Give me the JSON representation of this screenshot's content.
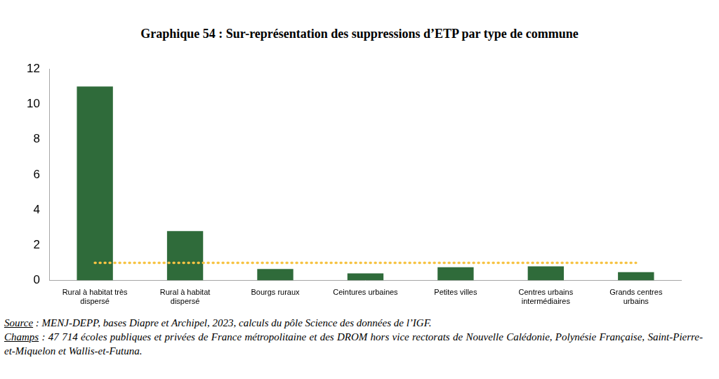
{
  "chart_data": {
    "type": "bar",
    "title": "Graphique 54 : Sur-représentation des suppressions d’ETP par type de commune",
    "categories": [
      [
        "Rural à habitat très",
        "dispersé"
      ],
      [
        "Rural à habitat",
        "dispersé"
      ],
      "Bourgs ruraux",
      "Ceintures urbaines",
      "Petites villes",
      [
        "Centres urbains",
        "intermédiaires"
      ],
      [
        "Grands centres",
        "urbains"
      ]
    ],
    "series": [
      {
        "type": "bar",
        "color": "#2f6b3a",
        "values": [
          11.0,
          2.8,
          0.65,
          0.4,
          0.75,
          0.8,
          0.47
        ]
      },
      {
        "type": "line",
        "color": "#f6c343",
        "line_style": "dotted",
        "values": [
          1,
          1,
          1,
          1,
          1,
          1,
          1
        ]
      }
    ],
    "ylim": [
      0,
      12
    ],
    "yticks": [
      0,
      2,
      4,
      6,
      8,
      10,
      12
    ],
    "grid": false,
    "notes": [
      {
        "label": "Source",
        "text": " : MENJ-DEPP, bases Diapre et Archipel, 2023, calculs du pôle Science des données de l’IGF."
      },
      {
        "label": "Champs",
        "text": " : 47 714 écoles publiques et privées de France métropolitaine et des DROM hors vice rectorats de Nouvelle Calédonie, Polynésie Française, Saint-Pierre-et-Miquelon et Wallis-et-Futuna."
      }
    ]
  }
}
